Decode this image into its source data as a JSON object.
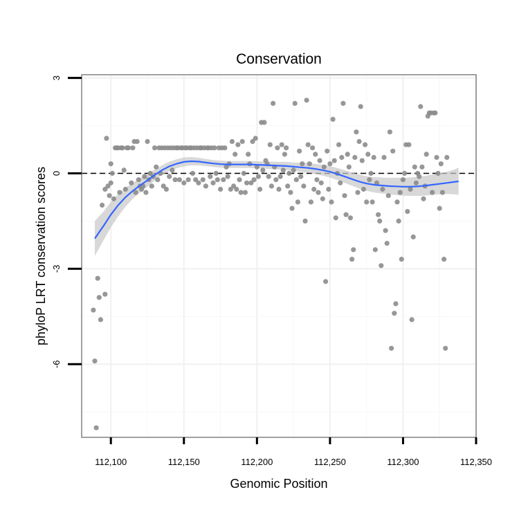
{
  "chart_data": {
    "type": "scatter",
    "title": "Conservation",
    "xlabel": "Genomic Position",
    "ylabel": "phyloP LRT conservation scores",
    "xlim": [
      112080,
      112350
    ],
    "ylim": [
      -8.3,
      3.1
    ],
    "x_ticks": [
      112100,
      112150,
      112200,
      112250,
      112300,
      112350
    ],
    "x_tick_labels": [
      "112,100",
      "112,150",
      "112,200",
      "112,250",
      "112,300",
      "112,350"
    ],
    "y_ticks": [
      3,
      0,
      -3,
      -6
    ],
    "y_tick_labels": [
      "3",
      "0",
      "-3",
      "-6"
    ],
    "reference_line": {
      "y": 0,
      "style": "dashed"
    },
    "points": [
      [
        112088,
        -4.3
      ],
      [
        112089,
        -5.9
      ],
      [
        112090,
        -8.0
      ],
      [
        112091,
        -3.3
      ],
      [
        112092,
        -3.9
      ],
      [
        112093,
        -4.6
      ],
      [
        112094,
        -1.0
      ],
      [
        112096,
        -3.8
      ],
      [
        112096,
        -0.5
      ],
      [
        112097,
        1.1
      ],
      [
        112098,
        -0.4
      ],
      [
        112099,
        -0.7
      ],
      [
        112100,
        0.3
      ],
      [
        112100,
        -0.3
      ],
      [
        112101,
        0.0
      ],
      [
        112102,
        -0.8
      ],
      [
        112103,
        0.8
      ],
      [
        112104,
        0.8
      ],
      [
        112105,
        0.8
      ],
      [
        112106,
        -0.6
      ],
      [
        112107,
        0.8
      ],
      [
        112108,
        0.8
      ],
      [
        112109,
        0.1
      ],
      [
        112110,
        -0.5
      ],
      [
        112111,
        0.8
      ],
      [
        112112,
        0.8
      ],
      [
        112114,
        -0.3
      ],
      [
        112115,
        0.8
      ],
      [
        112116,
        1.0
      ],
      [
        112117,
        -0.6
      ],
      [
        112118,
        1.0
      ],
      [
        112119,
        -0.2
      ],
      [
        112120,
        -0.4
      ],
      [
        112121,
        -0.5
      ],
      [
        112122,
        -0.4
      ],
      [
        112123,
        -0.1
      ],
      [
        112124,
        -0.6
      ],
      [
        112125,
        1.0
      ],
      [
        112126,
        -0.2
      ],
      [
        112127,
        0.0
      ],
      [
        112128,
        -0.4
      ],
      [
        112129,
        -0.1
      ],
      [
        112130,
        0.8
      ],
      [
        112131,
        0.2
      ],
      [
        112132,
        -0.2
      ],
      [
        112133,
        0.8
      ],
      [
        112134,
        0.0
      ],
      [
        112135,
        0.8
      ],
      [
        112136,
        -0.4
      ],
      [
        112137,
        0.8
      ],
      [
        112138,
        -0.5
      ],
      [
        112139,
        0.8
      ],
      [
        112140,
        -0.1
      ],
      [
        112141,
        0.8
      ],
      [
        112142,
        0.1
      ],
      [
        112143,
        0.8
      ],
      [
        112144,
        -0.2
      ],
      [
        112145,
        0.8
      ],
      [
        112146,
        0.8
      ],
      [
        112147,
        -0.2
      ],
      [
        112148,
        0.8
      ],
      [
        112149,
        0.8
      ],
      [
        112150,
        -0.3
      ],
      [
        112151,
        0.8
      ],
      [
        112152,
        0.8
      ],
      [
        112153,
        -0.2
      ],
      [
        112154,
        0.8
      ],
      [
        112155,
        0.8
      ],
      [
        112156,
        0.0
      ],
      [
        112157,
        0.8
      ],
      [
        112158,
        -0.2
      ],
      [
        112159,
        0.8
      ],
      [
        112160,
        -0.3
      ],
      [
        112161,
        0.8
      ],
      [
        112162,
        0.8
      ],
      [
        112163,
        -0.2
      ],
      [
        112164,
        0.8
      ],
      [
        112165,
        -0.4
      ],
      [
        112166,
        0.8
      ],
      [
        112167,
        0.8
      ],
      [
        112168,
        -0.1
      ],
      [
        112169,
        0.8
      ],
      [
        112170,
        -0.3
      ],
      [
        112171,
        0.8
      ],
      [
        112172,
        0.0
      ],
      [
        112173,
        -0.2
      ],
      [
        112174,
        0.8
      ],
      [
        112175,
        -0.5
      ],
      [
        112176,
        0.8
      ],
      [
        112177,
        -0.2
      ],
      [
        112178,
        0.8
      ],
      [
        112179,
        0.2
      ],
      [
        112180,
        -0.1
      ],
      [
        112181,
        0.3
      ],
      [
        112182,
        -0.5
      ],
      [
        112183,
        1.0
      ],
      [
        112184,
        -0.4
      ],
      [
        112185,
        0.6
      ],
      [
        112186,
        -0.5
      ],
      [
        112187,
        0.9
      ],
      [
        112188,
        -0.2
      ],
      [
        112189,
        -0.6
      ],
      [
        112190,
        1.0
      ],
      [
        112191,
        0.0
      ],
      [
        112192,
        -0.6
      ],
      [
        112193,
        -0.3
      ],
      [
        112194,
        0.6
      ],
      [
        112195,
        0.3
      ],
      [
        112196,
        -0.3
      ],
      [
        112197,
        1.0
      ],
      [
        112198,
        -0.2
      ],
      [
        112199,
        1.1
      ],
      [
        112200,
        0.2
      ],
      [
        112201,
        -0.1
      ],
      [
        112202,
        -0.5
      ],
      [
        112203,
        1.6
      ],
      [
        112204,
        0.1
      ],
      [
        112205,
        1.6
      ],
      [
        112206,
        0.4
      ],
      [
        112207,
        0.3
      ],
      [
        112208,
        -0.1
      ],
      [
        112209,
        0.9
      ],
      [
        112210,
        -0.4
      ],
      [
        112211,
        2.2
      ],
      [
        112212,
        0.2
      ],
      [
        112213,
        -0.2
      ],
      [
        112214,
        0.8
      ],
      [
        112215,
        -0.5
      ],
      [
        112216,
        -0.1
      ],
      [
        112217,
        0.9
      ],
      [
        112218,
        0.1
      ],
      [
        112219,
        0.6
      ],
      [
        112220,
        0.8
      ],
      [
        112221,
        -0.4
      ],
      [
        112222,
        0.0
      ],
      [
        112223,
        -0.6
      ],
      [
        112224,
        -1.1
      ],
      [
        112225,
        0.1
      ],
      [
        112226,
        2.2
      ],
      [
        112227,
        -0.2
      ],
      [
        112228,
        -0.9
      ],
      [
        112229,
        0.7
      ],
      [
        112230,
        -0.1
      ],
      [
        112231,
        0.3
      ],
      [
        112232,
        -0.4
      ],
      [
        112233,
        -1.5
      ],
      [
        112234,
        2.3
      ],
      [
        112235,
        0.9
      ],
      [
        112236,
        0.3
      ],
      [
        112237,
        -0.9
      ],
      [
        112238,
        0.8
      ],
      [
        112239,
        -0.5
      ],
      [
        112240,
        0.6
      ],
      [
        112241,
        -0.2
      ],
      [
        112242,
        -0.6
      ],
      [
        112243,
        0.4
      ],
      [
        112244,
        -0.3
      ],
      [
        112245,
        -0.8
      ],
      [
        112246,
        0.2
      ],
      [
        112247,
        -3.4
      ],
      [
        112248,
        0.7
      ],
      [
        112249,
        -0.5
      ],
      [
        112250,
        0.3
      ],
      [
        112251,
        -0.9
      ],
      [
        112252,
        1.7
      ],
      [
        112253,
        0.4
      ],
      [
        112254,
        -1.4
      ],
      [
        112255,
        0.0
      ],
      [
        112256,
        0.9
      ],
      [
        112257,
        -0.3
      ],
      [
        112258,
        0.5
      ],
      [
        112259,
        2.2
      ],
      [
        112260,
        -0.7
      ],
      [
        112261,
        -1.3
      ],
      [
        112262,
        0.6
      ],
      [
        112263,
        0.2
      ],
      [
        112264,
        -1.4
      ],
      [
        112265,
        -2.7
      ],
      [
        112266,
        -2.4
      ],
      [
        112267,
        0.5
      ],
      [
        112268,
        1.3
      ],
      [
        112269,
        -0.6
      ],
      [
        112270,
        1.0
      ],
      [
        112271,
        2.1
      ],
      [
        112272,
        0.4
      ],
      [
        112273,
        -0.5
      ],
      [
        112274,
        0.9
      ],
      [
        112275,
        -0.9
      ],
      [
        112276,
        0.6
      ],
      [
        112277,
        -0.2
      ],
      [
        112278,
        0.0
      ],
      [
        112279,
        -0.9
      ],
      [
        112280,
        0.5
      ],
      [
        112281,
        -2.4
      ],
      [
        112282,
        -0.3
      ],
      [
        112283,
        -1.3
      ],
      [
        112284,
        -1.5
      ],
      [
        112285,
        -2.9
      ],
      [
        112286,
        -0.5
      ],
      [
        112287,
        0.5
      ],
      [
        112288,
        -1.8
      ],
      [
        112289,
        -2.2
      ],
      [
        112290,
        -0.7
      ],
      [
        112291,
        1.3
      ],
      [
        112292,
        -5.5
      ],
      [
        112293,
        0.7
      ],
      [
        112294,
        -4.4
      ],
      [
        112295,
        -4.1
      ],
      [
        112296,
        -0.9
      ],
      [
        112297,
        -1.5
      ],
      [
        112298,
        -0.6
      ],
      [
        112299,
        -2.7
      ],
      [
        112300,
        -0.2
      ],
      [
        112301,
        0.0
      ],
      [
        112302,
        0.9
      ],
      [
        112303,
        -1.2
      ],
      [
        112304,
        0.9
      ],
      [
        112305,
        -0.5
      ],
      [
        112306,
        -4.6
      ],
      [
        112307,
        -2.0
      ],
      [
        112308,
        0.2
      ],
      [
        112309,
        -0.3
      ],
      [
        112310,
        0.0
      ],
      [
        112311,
        -0.1
      ],
      [
        112312,
        2.1
      ],
      [
        112313,
        0.2
      ],
      [
        112314,
        -0.8
      ],
      [
        112315,
        -0.4
      ],
      [
        112316,
        0.6
      ],
      [
        112317,
        1.8
      ],
      [
        112318,
        1.9
      ],
      [
        112319,
        1.9
      ],
      [
        112320,
        -0.6
      ],
      [
        112321,
        1.9
      ],
      [
        112322,
        1.9
      ],
      [
        112323,
        0.5
      ],
      [
        112324,
        0.0
      ],
      [
        112325,
        -1.1
      ],
      [
        112326,
        0.3
      ],
      [
        112327,
        -0.6
      ],
      [
        112328,
        -2.7
      ],
      [
        112329,
        -5.5
      ],
      [
        112330,
        0.5
      ]
    ],
    "smooth": {
      "method": "loess",
      "color": "#3366ff",
      "x": [
        112089,
        112095,
        112100,
        112105,
        112110,
        112115,
        112120,
        112125,
        112130,
        112135,
        112140,
        112145,
        112150,
        112155,
        112160,
        112165,
        112170,
        112175,
        112180,
        112185,
        112190,
        112195,
        112200,
        112205,
        112210,
        112215,
        112220,
        112225,
        112230,
        112235,
        112240,
        112245,
        112250,
        112255,
        112260,
        112265,
        112270,
        112275,
        112280,
        112285,
        112290,
        112295,
        112300,
        112305,
        112310,
        112315,
        112320,
        112325,
        112330,
        112335,
        112338
      ],
      "y": [
        -2.05,
        -1.65,
        -1.3,
        -1.0,
        -0.75,
        -0.55,
        -0.38,
        -0.22,
        -0.05,
        0.1,
        0.22,
        0.3,
        0.36,
        0.38,
        0.37,
        0.34,
        0.31,
        0.29,
        0.28,
        0.28,
        0.28,
        0.28,
        0.27,
        0.26,
        0.25,
        0.24,
        0.23,
        0.21,
        0.19,
        0.17,
        0.14,
        0.1,
        0.05,
        -0.02,
        -0.1,
        -0.18,
        -0.26,
        -0.32,
        -0.36,
        -0.38,
        -0.4,
        -0.41,
        -0.42,
        -0.42,
        -0.41,
        -0.39,
        -0.36,
        -0.33,
        -0.3,
        -0.27,
        -0.25
      ],
      "lo": [
        -2.6,
        -2.1,
        -1.7,
        -1.35,
        -1.05,
        -0.8,
        -0.6,
        -0.42,
        -0.22,
        -0.05,
        0.07,
        0.16,
        0.22,
        0.25,
        0.25,
        0.23,
        0.2,
        0.18,
        0.17,
        0.17,
        0.17,
        0.17,
        0.16,
        0.15,
        0.13,
        0.12,
        0.1,
        0.08,
        0.05,
        0.02,
        -0.02,
        -0.07,
        -0.13,
        -0.21,
        -0.3,
        -0.39,
        -0.48,
        -0.55,
        -0.6,
        -0.63,
        -0.66,
        -0.68,
        -0.7,
        -0.71,
        -0.71,
        -0.7,
        -0.68,
        -0.66,
        -0.65,
        -0.66,
        -0.68
      ],
      "hi": [
        -1.5,
        -1.2,
        -0.9,
        -0.65,
        -0.45,
        -0.3,
        -0.16,
        -0.02,
        0.12,
        0.25,
        0.37,
        0.44,
        0.5,
        0.51,
        0.49,
        0.45,
        0.42,
        0.4,
        0.39,
        0.39,
        0.39,
        0.39,
        0.38,
        0.37,
        0.37,
        0.36,
        0.36,
        0.34,
        0.33,
        0.32,
        0.3,
        0.27,
        0.23,
        0.17,
        0.1,
        0.03,
        -0.04,
        -0.09,
        -0.12,
        -0.13,
        -0.14,
        -0.14,
        -0.14,
        -0.13,
        -0.11,
        -0.08,
        -0.04,
        0.0,
        0.05,
        0.12,
        0.18
      ]
    }
  }
}
